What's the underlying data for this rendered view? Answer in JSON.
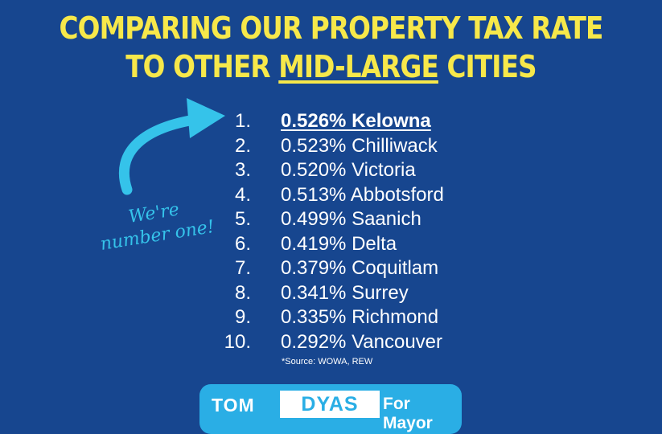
{
  "title": {
    "line1": "COMPARING OUR PROPERTY TAX RATE",
    "line2_prefix": "TO OTHER ",
    "line2_emphasis": "MID-LARGE",
    "line2_suffix": " CITIES"
  },
  "callout": {
    "line1": "We're",
    "line2": "number one!"
  },
  "ranking": [
    {
      "rank": "1.",
      "text": "0.526% Kelowna"
    },
    {
      "rank": "2.",
      "text": "0.523% Chilliwack"
    },
    {
      "rank": "3.",
      "text": "0.520% Victoria"
    },
    {
      "rank": "4.",
      "text": "0.513% Abbotsford"
    },
    {
      "rank": "5.",
      "text": "0.499% Saanich"
    },
    {
      "rank": "6.",
      "text": "0.419% Delta"
    },
    {
      "rank": "7.",
      "text": "0.379% Coquitlam"
    },
    {
      "rank": "8.",
      "text": "0.341% Surrey"
    },
    {
      "rank": "9.",
      "text": "0.335% Richmond"
    },
    {
      "rank": "10.",
      "text": "0.292% Vancouver"
    }
  ],
  "source": "*Source: WOWA, REW",
  "logo": {
    "first": "TOM",
    "last": "DYAS",
    "suffix": "For Mayor"
  },
  "colors": {
    "background": "#17468f",
    "title": "#f7e84a",
    "accent": "#35c3ea",
    "logo_bar": "#2aaee5"
  }
}
